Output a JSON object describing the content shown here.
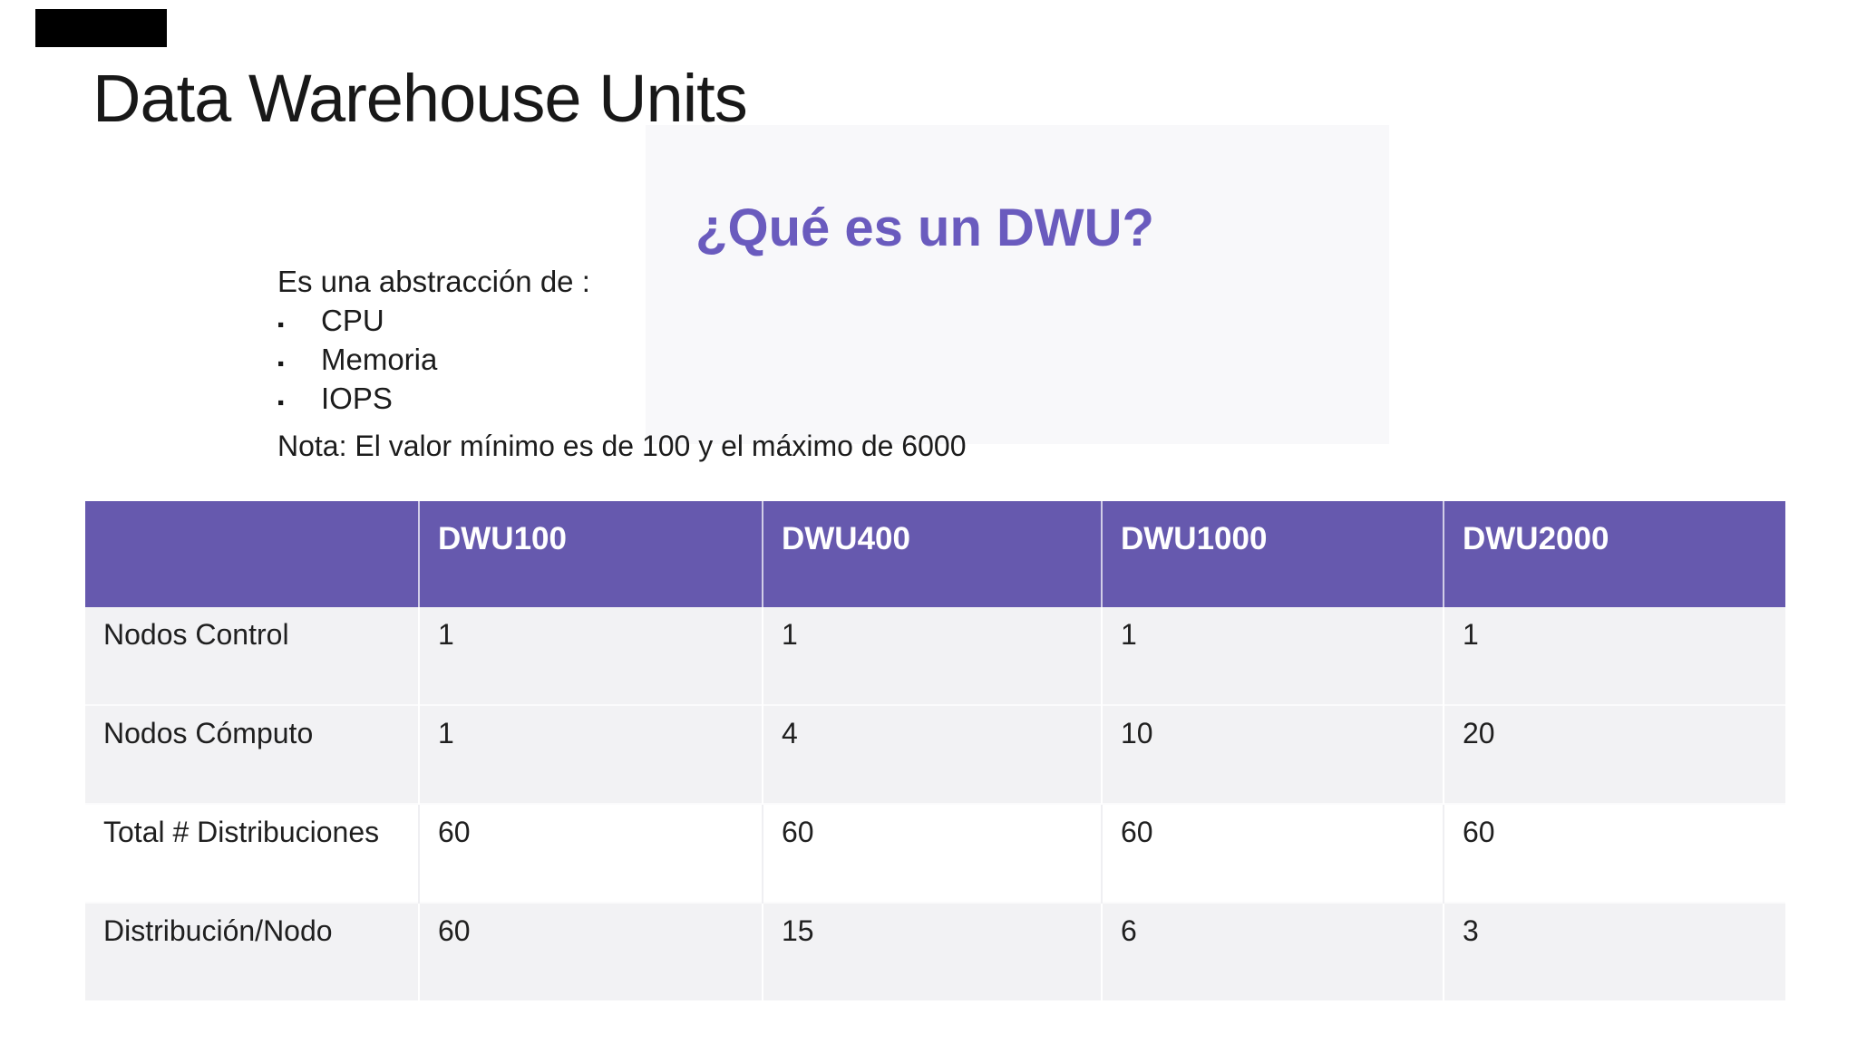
{
  "slide": {
    "title": "Data Warehouse Units",
    "subtitle": "¿Qué es un DWU?",
    "intro": "Es una abstracción de :",
    "bullet_glyph": "▪",
    "bullets": [
      "CPU",
      "Memoria",
      "IOPS"
    ],
    "note": "Nota: El valor mínimo es de 100 y el máximo de 6000"
  },
  "table": {
    "columns": [
      "",
      "DWU100",
      "DWU400",
      "DWU1000",
      "DWU2000"
    ],
    "rows": [
      {
        "label": "Nodos Control",
        "values": [
          "1",
          "1",
          "1",
          "1"
        ]
      },
      {
        "label": "Nodos Cómputo",
        "values": [
          "1",
          "4",
          "10",
          "20"
        ]
      },
      {
        "label": "Total # Distribuciones",
        "values": [
          "60",
          "60",
          "60",
          "60"
        ]
      },
      {
        "label": "Distribución/Nodo",
        "values": [
          "60",
          "15",
          "6",
          "3"
        ]
      }
    ]
  },
  "colors": {
    "table_header_purple": "#6659ae",
    "subtitle_purple": "#6a5bbe",
    "banded_row_gray": "#f2f2f4",
    "text_dark": "#1c1c1c"
  }
}
